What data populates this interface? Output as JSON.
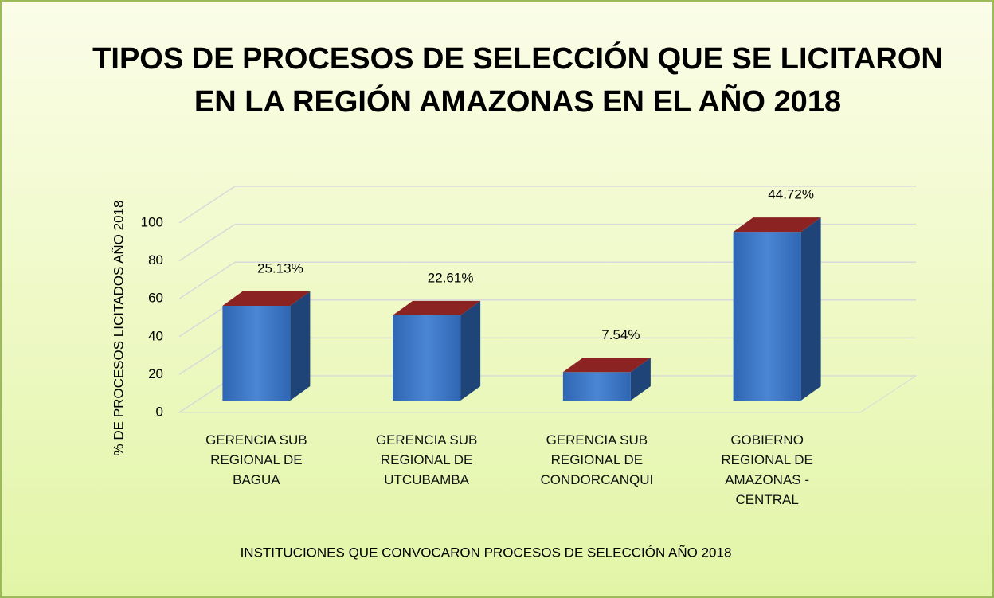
{
  "chart_data": {
    "type": "bar3d",
    "title": [
      "TIPOS DE PROCESOS DE SELECCIÓN QUE SE LICITARON",
      "EN LA REGIÓN AMAZONAS EN EL AÑO 2018"
    ],
    "x_label": "INSTITUCIONES QUE CONVOCARON PROCESOS DE SELECCIÓN AÑO 2018",
    "y_label": "% DE PROCESOS LICITADOS AÑO 2018",
    "categories": [
      "GERENCIA SUB REGIONAL DE BAGUA",
      "GERENCIA SUB REGIONAL DE UTCUBAMBA",
      "GERENCIA SUB REGIONAL DE CONDORCANQUI",
      "GOBIERNO REGIONAL DE AMAZONAS - CENTRAL"
    ],
    "values": [
      50,
      45,
      15,
      89
    ],
    "annotations": [
      "25.13%",
      "22.61%",
      "7.54%",
      "44.72%"
    ],
    "color": "#3a75c4",
    "top_color": "#8b2323",
    "ylim": [
      0,
      100
    ],
    "yticks": [
      0,
      20,
      40,
      60,
      80,
      100
    ],
    "grid": true
  }
}
